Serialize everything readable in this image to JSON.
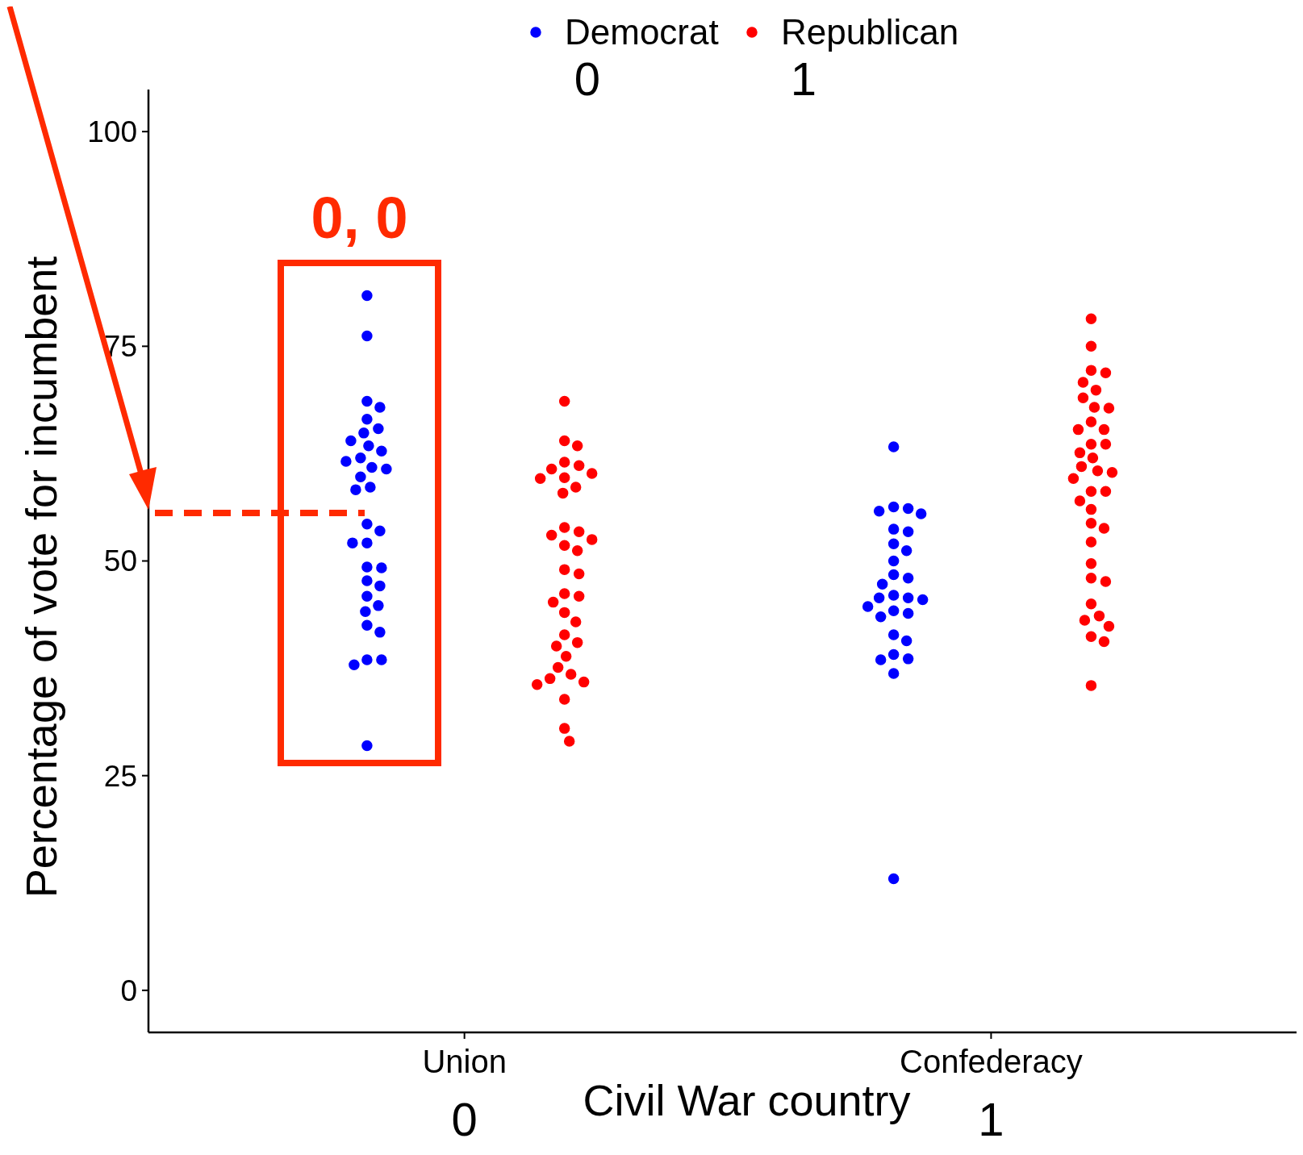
{
  "chart_data": {
    "type": "scatter",
    "xlabel": "Civil War country",
    "ylabel": "Percentage of vote for incumbent",
    "categories": [
      "Union",
      "Confederacy"
    ],
    "ylim": [
      -4.9,
      104.9
    ],
    "yticks": [
      0,
      25,
      50,
      75,
      100
    ],
    "grid": false,
    "legend": "top",
    "marker": "circle",
    "annotations": [
      "0",
      "1",
      "0",
      "1",
      "0, 0"
    ],
    "series": [
      {
        "name": "Democrat",
        "color": "#0000ff",
        "x": [
          "Union",
          "Union",
          "Union",
          "Union",
          "Union",
          "Union",
          "Union",
          "Union",
          "Union",
          "Union",
          "Union",
          "Union",
          "Union",
          "Union",
          "Union",
          "Union",
          "Union",
          "Union",
          "Union",
          "Union",
          "Union",
          "Union",
          "Union",
          "Union",
          "Union",
          "Union",
          "Union",
          "Union",
          "Union",
          "Union",
          "Union",
          "Union",
          "Union",
          "Union",
          "Confederacy",
          "Confederacy",
          "Confederacy",
          "Confederacy",
          "Confederacy",
          "Confederacy",
          "Confederacy",
          "Confederacy",
          "Confederacy",
          "Confederacy",
          "Confederacy",
          "Confederacy",
          "Confederacy",
          "Confederacy",
          "Confederacy",
          "Confederacy",
          "Confederacy",
          "Confederacy",
          "Confederacy",
          "Confederacy",
          "Confederacy",
          "Confederacy",
          "Confederacy",
          "Confederacy",
          "Confederacy",
          "Confederacy",
          "Confederacy",
          "Confederacy"
        ],
        "values": [
          80.9,
          76.2,
          68.6,
          67.9,
          66.5,
          65.4,
          64.9,
          64.0,
          63.4,
          62.8,
          62.0,
          61.6,
          60.7,
          60.9,
          59.8,
          58.6,
          58.3,
          54.3,
          53.5,
          52.1,
          52.1,
          49.3,
          49.2,
          47.1,
          47.7,
          45.9,
          44.8,
          44.1,
          42.5,
          41.7,
          38.5,
          38.5,
          37.9,
          28.5,
          63.3,
          56.1,
          56.3,
          55.5,
          55.8,
          53.7,
          53.4,
          52.0,
          51.2,
          50.0,
          48.4,
          48.0,
          47.3,
          46.0,
          45.7,
          45.5,
          45.7,
          44.7,
          44.2,
          43.9,
          43.5,
          41.4,
          40.7,
          39.1,
          38.6,
          38.5,
          36.9,
          13.0
        ]
      },
      {
        "name": "Republican",
        "color": "#ff0000",
        "x": [
          "Union",
          "Union",
          "Union",
          "Union",
          "Union",
          "Union",
          "Union",
          "Union",
          "Union",
          "Union",
          "Union",
          "Union",
          "Union",
          "Union",
          "Union",
          "Union",
          "Union",
          "Union",
          "Union",
          "Union",
          "Union",
          "Union",
          "Union",
          "Union",
          "Union",
          "Union",
          "Union",
          "Union",
          "Union",
          "Union",
          "Union",
          "Union",
          "Union",
          "Union",
          "Union",
          "Union",
          "Confederacy",
          "Confederacy",
          "Confederacy",
          "Confederacy",
          "Confederacy",
          "Confederacy",
          "Confederacy",
          "Confederacy",
          "Confederacy",
          "Confederacy",
          "Confederacy",
          "Confederacy",
          "Confederacy",
          "Confederacy",
          "Confederacy",
          "Confederacy",
          "Confederacy",
          "Confederacy",
          "Confederacy",
          "Confederacy",
          "Confederacy",
          "Confederacy",
          "Confederacy",
          "Confederacy",
          "Confederacy",
          "Confederacy",
          "Confederacy",
          "Confederacy",
          "Confederacy",
          "Confederacy",
          "Confederacy",
          "Confederacy",
          "Confederacy",
          "Confederacy",
          "Confederacy",
          "Confederacy",
          "Confederacy"
        ],
        "values": [
          68.6,
          64.0,
          63.4,
          61.5,
          61.1,
          60.7,
          60.2,
          59.6,
          59.7,
          58.6,
          57.9,
          53.4,
          53.9,
          52.5,
          53.0,
          51.8,
          51.2,
          49.0,
          48.5,
          46.2,
          45.9,
          45.2,
          44.0,
          42.9,
          41.4,
          40.5,
          40.1,
          38.9,
          36.8,
          37.6,
          35.9,
          36.3,
          35.6,
          33.9,
          30.5,
          29.0,
          78.2,
          75.0,
          72.2,
          71.9,
          70.8,
          69.9,
          69.0,
          66.2,
          67.9,
          67.8,
          65.3,
          65.3,
          63.6,
          63.6,
          62.6,
          62.0,
          60.3,
          59.6,
          60.5,
          61.0,
          58.1,
          57.0,
          58.1,
          56.0,
          54.4,
          53.8,
          52.2,
          49.7,
          48.0,
          47.6,
          45.0,
          43.6,
          43.1,
          42.4,
          41.2,
          40.6,
          35.5
        ]
      }
    ]
  }
}
